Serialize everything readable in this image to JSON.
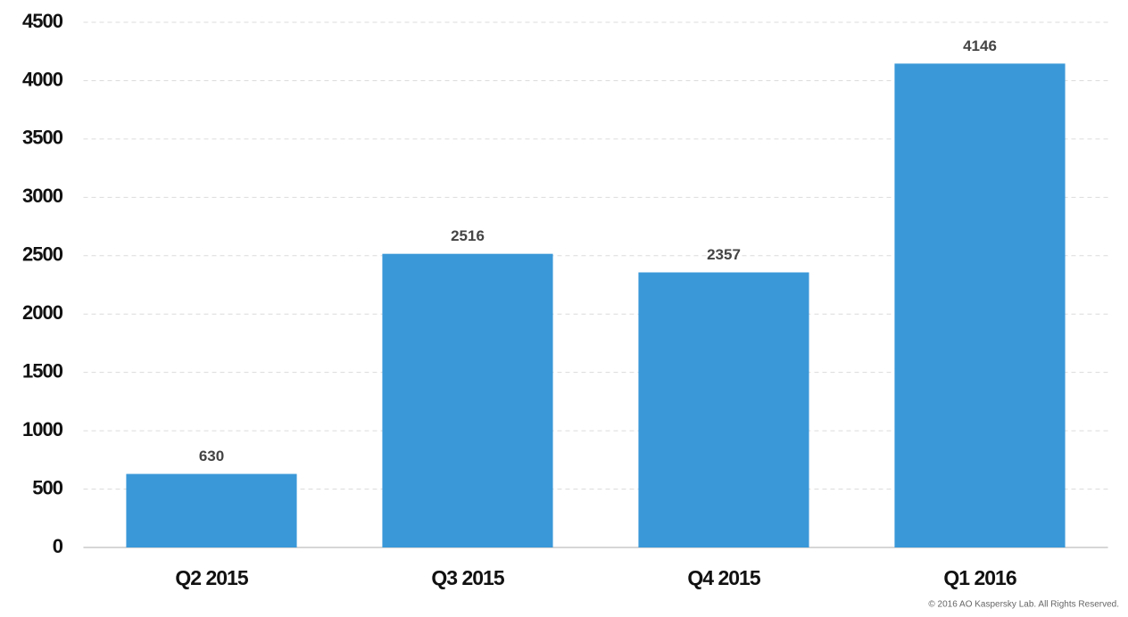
{
  "chart_data": {
    "type": "bar",
    "categories": [
      "Q2 2015",
      "Q3 2015",
      "Q4 2015",
      "Q1 2016"
    ],
    "values": [
      630,
      2516,
      2357,
      4146
    ],
    "color": "#3a98d8",
    "ylim": [
      0,
      4500
    ],
    "yticks": [
      0,
      500,
      1000,
      1500,
      2000,
      2500,
      3000,
      3500,
      4000,
      4500
    ],
    "grid": true,
    "copyright": "© 2016 AO Kaspersky Lab. All Rights Reserved."
  }
}
